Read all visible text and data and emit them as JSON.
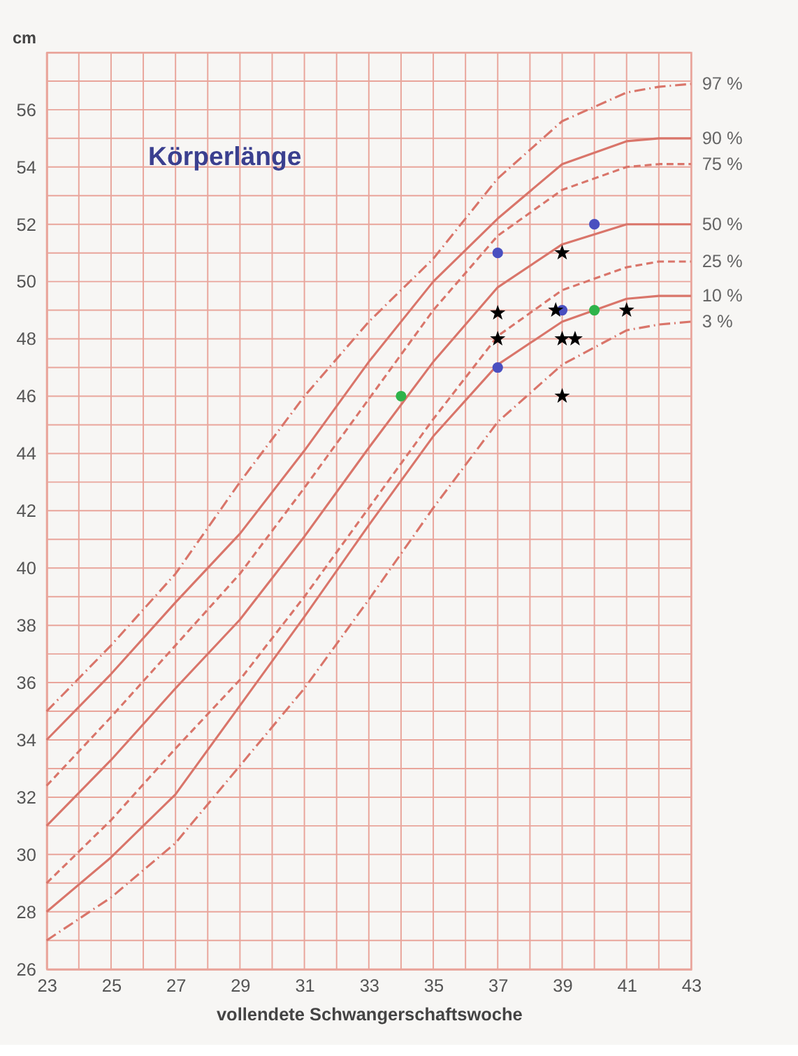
{
  "chart_data": {
    "type": "line",
    "title": "Körperlänge",
    "xlabel": "vollendete Schwangerschaftswoche",
    "ylabel": "cm",
    "x": [
      23,
      25,
      27,
      29,
      31,
      33,
      35,
      37,
      39,
      41,
      42,
      43
    ],
    "series": [
      {
        "name": "97 %",
        "color": "#d9756a",
        "line_style": "dashdot",
        "values": [
          35,
          37.3,
          39.8,
          43.0,
          46.0,
          48.6,
          50.8,
          53.6,
          55.6,
          56.6,
          56.8,
          56.9
        ]
      },
      {
        "name": "90 %",
        "color": "#d9756a",
        "line_style": "solid",
        "values": [
          34,
          36.3,
          38.8,
          41.2,
          44.1,
          47.2,
          50.0,
          52.2,
          54.1,
          54.9,
          55,
          55
        ]
      },
      {
        "name": "75 %",
        "color": "#d9756a",
        "line_style": "dashed",
        "values": [
          32.4,
          34.8,
          37.3,
          39.8,
          42.8,
          45.9,
          49.0,
          51.6,
          53.2,
          54,
          54.1,
          54.1
        ]
      },
      {
        "name": "50 %",
        "color": "#d9756a",
        "line_style": "solid",
        "values": [
          31,
          33.3,
          35.8,
          38.2,
          41.1,
          44.2,
          47.2,
          49.8,
          51.3,
          52,
          52,
          52
        ]
      },
      {
        "name": "25 %",
        "color": "#d9756a",
        "line_style": "dashed",
        "values": [
          29,
          31.2,
          33.7,
          36.1,
          39.0,
          42.1,
          45.2,
          48.1,
          49.7,
          50.5,
          50.7,
          50.7
        ]
      },
      {
        "name": "10 %",
        "color": "#d9756a",
        "line_style": "solid",
        "values": [
          28,
          29.9,
          32.1,
          35.2,
          38.3,
          41.5,
          44.6,
          47.1,
          48.6,
          49.4,
          49.5,
          49.5
        ]
      },
      {
        "name": "3 %",
        "color": "#d9756a",
        "line_style": "dashdot",
        "values": [
          27,
          28.5,
          30.4,
          33.1,
          35.8,
          38.9,
          42.1,
          45.1,
          47.1,
          48.3,
          48.5,
          48.6
        ]
      },
      {
        "type": "scatter",
        "color": "#4a4fc0",
        "marker": "circle",
        "x": [
          37,
          37,
          39,
          40
        ],
        "values": [
          51,
          47,
          49,
          52
        ]
      },
      {
        "type": "scatter",
        "color": "#2fb34a",
        "marker": "circle",
        "x": [
          34,
          40
        ],
        "values": [
          46,
          49
        ]
      },
      {
        "type": "scatter",
        "color": "#000000",
        "marker": "star",
        "x": [
          37,
          37,
          38.8,
          39,
          39,
          39.4,
          39,
          41
        ],
        "values": [
          48.9,
          48,
          49,
          51,
          48,
          48,
          46,
          49
        ]
      }
    ],
    "xlim": [
      23,
      43
    ],
    "xticks": [
      23,
      {
        "value": 24,
        "label": null
      },
      25,
      {
        "value": 26,
        "label": null
      },
      27,
      {
        "value": 28,
        "label": null
      },
      29,
      {
        "value": 30,
        "label": null
      },
      31,
      {
        "value": 32,
        "label": null
      },
      33,
      {
        "value": 34,
        "label": null
      },
      35,
      {
        "value": 36,
        "label": null
      },
      37,
      {
        "value": 38,
        "label": null
      },
      39,
      {
        "value": 40,
        "label": null
      },
      41,
      {
        "value": 42,
        "label": null
      },
      43
    ],
    "ylim": [
      26,
      58
    ],
    "yticks": [
      26,
      {
        "value": 27,
        "label": null
      },
      28,
      {
        "value": 29,
        "label": null
      },
      30,
      {
        "value": 31,
        "label": null
      },
      32,
      {
        "value": 33,
        "label": null
      },
      34,
      {
        "value": 35,
        "label": null
      },
      36,
      {
        "value": 37,
        "label": null
      },
      38,
      {
        "value": 39,
        "label": null
      },
      40,
      {
        "value": 41,
        "label": null
      },
      42,
      {
        "value": 43,
        "label": null
      },
      44,
      {
        "value": 45,
        "label": null
      },
      46,
      {
        "value": 47,
        "label": null
      },
      48,
      {
        "value": 49,
        "label": null
      },
      50,
      {
        "value": 51,
        "label": null
      },
      52,
      {
        "value": 53,
        "label": null
      },
      54,
      {
        "value": 55,
        "label": null
      },
      56,
      {
        "value": 57,
        "label": null
      },
      {
        "value": 58,
        "label": null
      }
    ],
    "grid": true
  }
}
